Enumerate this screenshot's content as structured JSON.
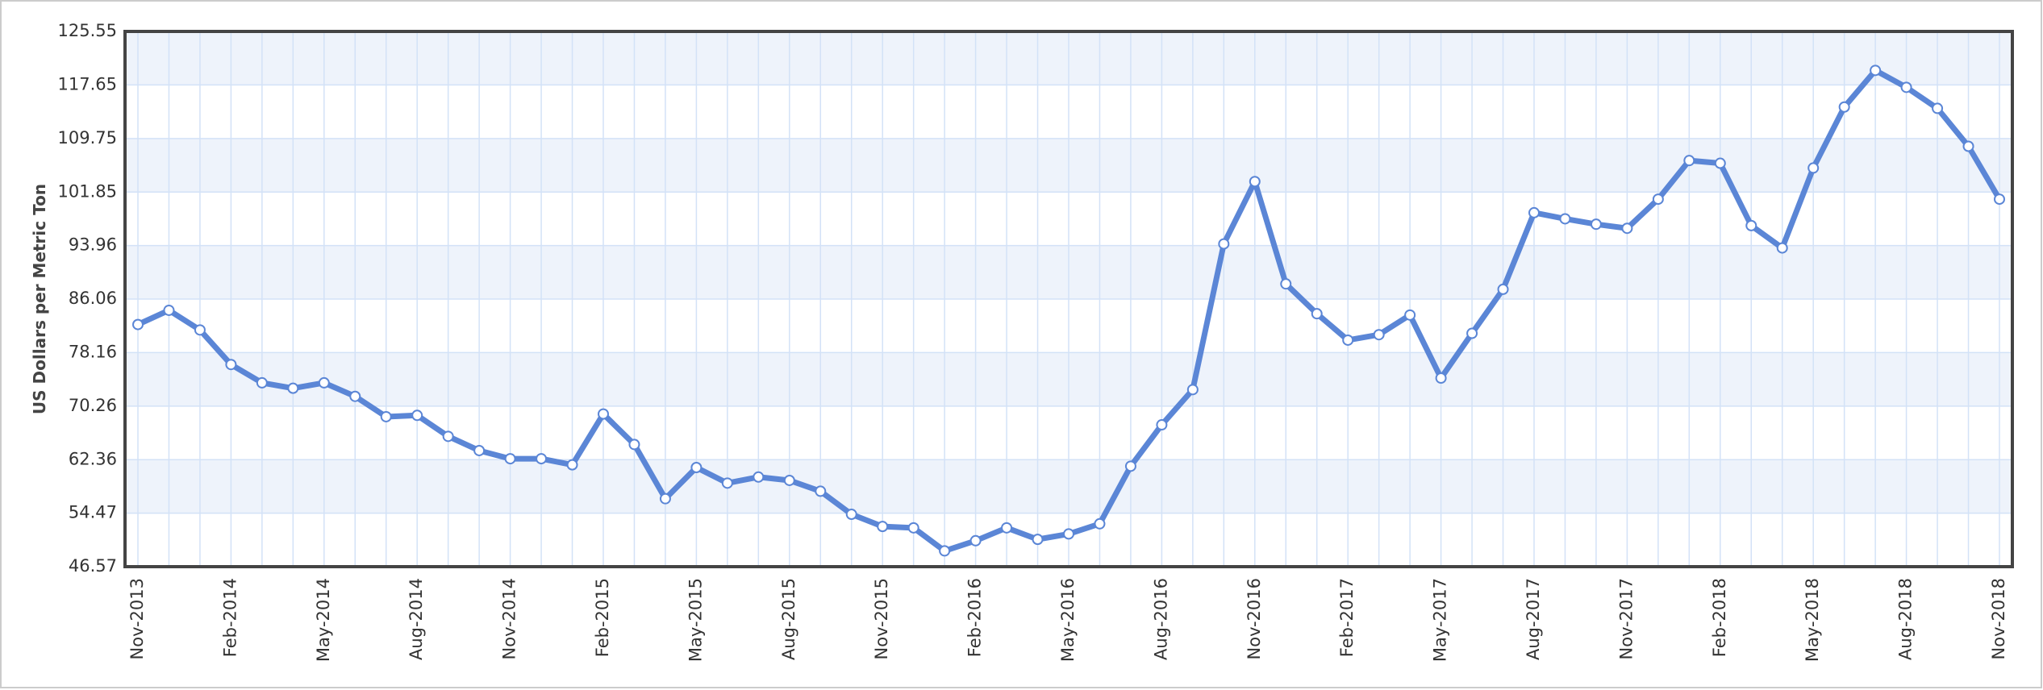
{
  "chart_data": {
    "type": "line",
    "y_label": "US Dollars per Metric Ton",
    "categories": [
      "Nov-2013",
      null,
      null,
      "Feb-2014",
      null,
      null,
      "May-2014",
      null,
      null,
      "Aug-2014",
      null,
      null,
      "Nov-2014",
      null,
      null,
      "Feb-2015",
      null,
      null,
      "May-2015",
      null,
      null,
      "Aug-2015",
      null,
      null,
      "Nov-2015",
      null,
      null,
      "Feb-2016",
      null,
      null,
      "May-2016",
      null,
      null,
      "Aug-2016",
      null,
      null,
      "Nov-2016",
      null,
      null,
      "Feb-2017",
      null,
      null,
      "May-2017",
      null,
      null,
      "Aug-2017",
      null,
      null,
      "Nov-2017",
      null,
      null,
      "Feb-2018",
      null,
      null,
      "May-2018",
      null,
      null,
      "Aug-2018",
      null,
      null,
      "Nov-2018"
    ],
    "series": [
      {
        "color": "#5b86d6",
        "values": [
          82.3,
          84.4,
          81.5,
          76.4,
          73.7,
          72.9,
          73.7,
          71.7,
          68.7,
          68.9,
          65.8,
          63.7,
          62.5,
          62.5,
          61.6,
          69.1,
          64.6,
          56.6,
          61.2,
          58.9,
          59.8,
          59.3,
          57.7,
          54.3,
          52.5,
          52.3,
          48.9,
          50.4,
          52.3,
          50.6,
          51.4,
          52.9,
          61.4,
          67.5,
          72.7,
          94.2,
          103.4,
          88.3,
          83.9,
          80.0,
          80.8,
          83.7,
          74.4,
          81.0,
          87.5,
          98.8,
          97.9,
          97.1,
          96.5,
          100.8,
          106.5,
          106.1,
          96.9,
          93.6,
          105.4,
          114.4,
          119.8,
          117.3,
          114.2,
          108.6,
          100.8
        ]
      }
    ],
    "ylim": [
      46.57,
      125.55
    ],
    "yticks": [
      46.57,
      54.47,
      62.36,
      70.26,
      78.16,
      86.06,
      93.96,
      101.85,
      109.75,
      117.65,
      125.55
    ],
    "grid": true
  }
}
